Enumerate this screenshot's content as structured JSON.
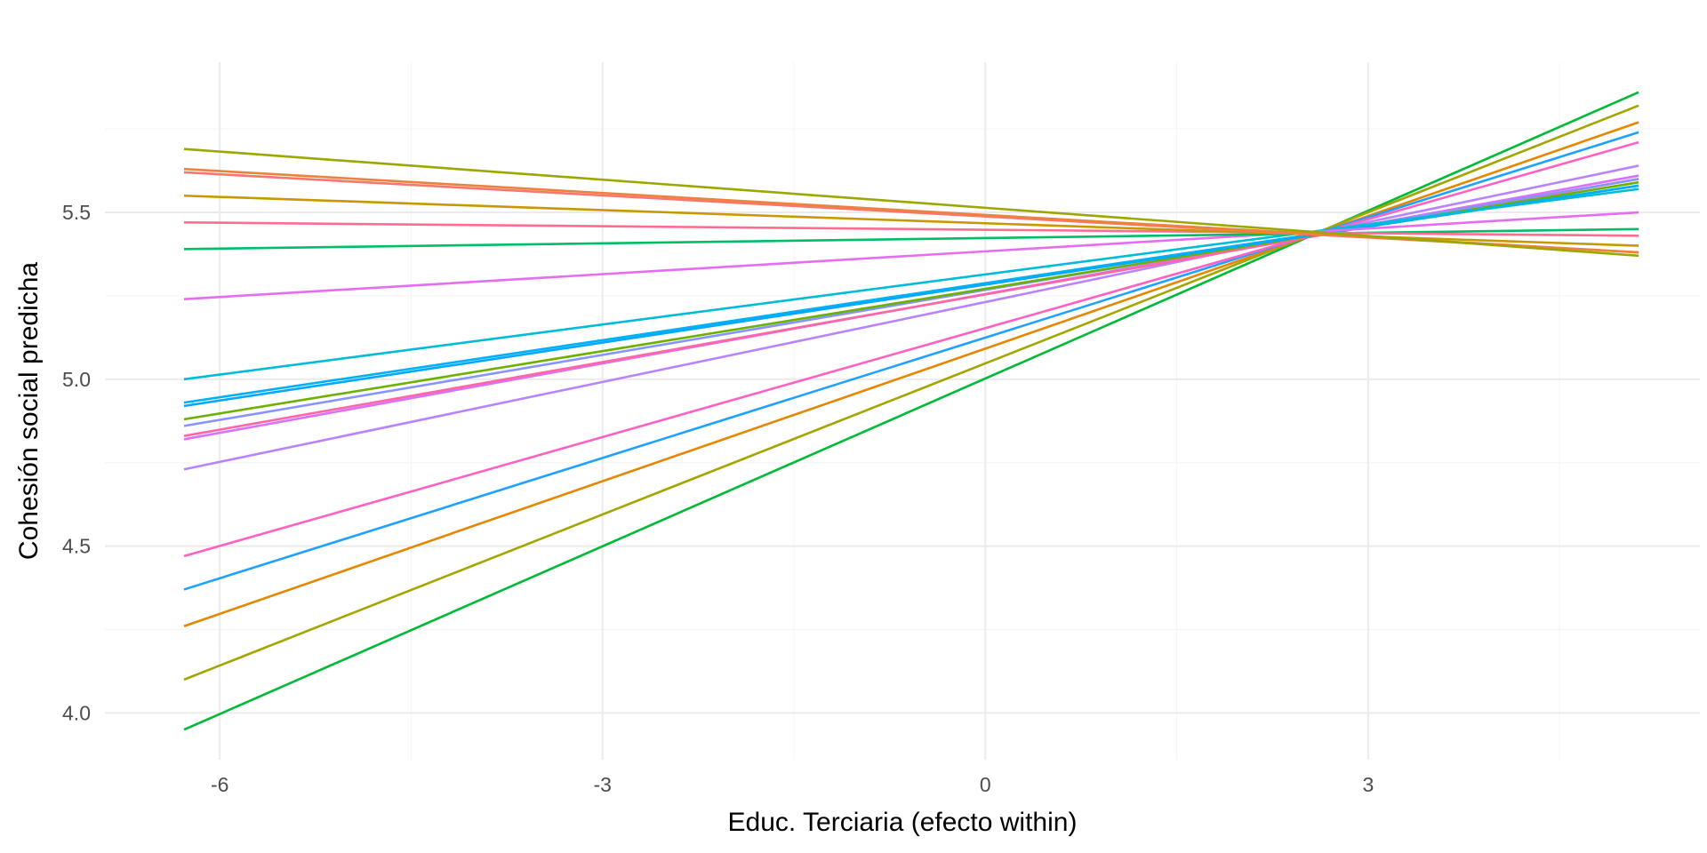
{
  "chart_data": {
    "type": "line",
    "title": "",
    "xlabel": "Educ. Terciaria (efecto within)",
    "ylabel": "Cohesión social predicha",
    "xlim": [
      -6.9,
      5.6
    ],
    "ylim": [
      3.86,
      5.95
    ],
    "x_ticks": [
      -6,
      -3,
      0,
      3
    ],
    "x_tick_labels": [
      "-6",
      "-3",
      "0",
      "3"
    ],
    "y_ticks": [
      4.0,
      4.5,
      5.0,
      5.5
    ],
    "y_tick_labels": [
      "4.0",
      "4.5",
      "5.0",
      "5.5"
    ],
    "grid": true,
    "legend": "none",
    "x_range": [
      -6.28,
      5.12
    ],
    "series": [
      {
        "color": "#00BA38",
        "y_start": 3.95,
        "y_end": 5.86
      },
      {
        "color": "#A3A500",
        "y_start": 4.1,
        "y_end": 5.82
      },
      {
        "color": "#E58700",
        "y_start": 4.26,
        "y_end": 5.77
      },
      {
        "color": "#1FA2FF",
        "y_start": 4.37,
        "y_end": 5.74
      },
      {
        "color": "#FF61C3",
        "y_start": 4.47,
        "y_end": 5.71
      },
      {
        "color": "#B983FF",
        "y_start": 4.73,
        "y_end": 5.64
      },
      {
        "color": "#D970FF",
        "y_start": 4.82,
        "y_end": 5.61
      },
      {
        "color": "#FF67A4",
        "y_start": 4.83,
        "y_end": 5.6
      },
      {
        "color": "#8794FF",
        "y_start": 4.86,
        "y_end": 5.6
      },
      {
        "color": "#6BB100",
        "y_start": 4.88,
        "y_end": 5.59
      },
      {
        "color": "#00A9FF",
        "y_start": 4.92,
        "y_end": 5.58
      },
      {
        "color": "#00B0F6",
        "y_start": 4.93,
        "y_end": 5.58
      },
      {
        "color": "#00BCD8",
        "y_start": 5.0,
        "y_end": 5.57
      },
      {
        "color": "#E76BF3",
        "y_start": 5.24,
        "y_end": 5.5
      },
      {
        "color": "#00BE67",
        "y_start": 5.39,
        "y_end": 5.45
      },
      {
        "color": "#FF6C91",
        "y_start": 5.47,
        "y_end": 5.43
      },
      {
        "color": "#C99800",
        "y_start": 5.55,
        "y_end": 5.4
      },
      {
        "color": "#F8766D",
        "y_start": 5.62,
        "y_end": 5.38
      },
      {
        "color": "#EC823C",
        "y_start": 5.63,
        "y_end": 5.38
      },
      {
        "color": "#9CA700",
        "y_start": 5.69,
        "y_end": 5.37
      }
    ]
  }
}
